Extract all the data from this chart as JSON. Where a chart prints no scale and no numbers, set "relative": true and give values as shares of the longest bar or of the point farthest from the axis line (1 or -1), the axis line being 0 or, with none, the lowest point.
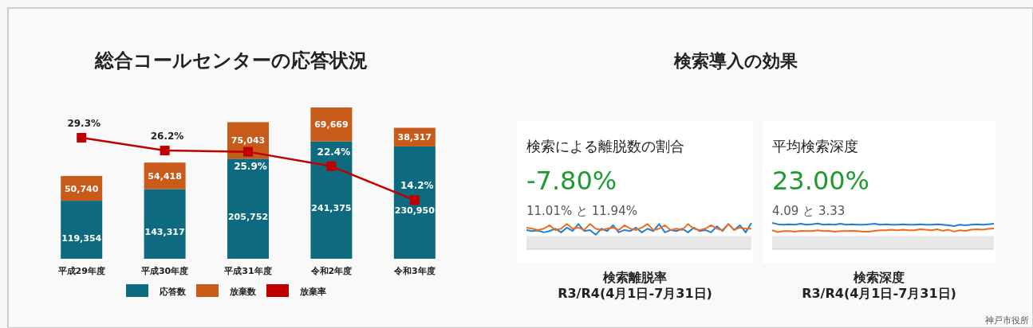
{
  "chart_data": [
    {
      "type": "bar",
      "title": "総合コールセンターの応答状況",
      "stacked": true,
      "legend": "bottom",
      "categories": [
        "平成29年度",
        "平成30年度",
        "平成31年度",
        "令和2年度",
        "令和3年度"
      ],
      "series": [
        {
          "name": "応答数",
          "color": "#0e6a7e",
          "values": [
            119354,
            143317,
            205752,
            241375,
            230950
          ],
          "value_labels": [
            "119,354",
            "143,317",
            "205,752",
            "241,375",
            "230,950"
          ]
        },
        {
          "name": "放棄数",
          "color": "#c85a1a",
          "values": [
            50740,
            54418,
            75043,
            69669,
            38317
          ],
          "value_labels": [
            "50,740",
            "54,418",
            "75,043",
            "69,669",
            "38,317"
          ]
        },
        {
          "name": "放棄率",
          "type": "line",
          "axis": "y2",
          "marker": "square",
          "color": "#c00000",
          "values": [
            29.3,
            26.2,
            25.9,
            22.4,
            14.2
          ],
          "value_labels": [
            "29.3%",
            "26.2%",
            "25.9%",
            "22.4%",
            "14.2%"
          ]
        }
      ]
    },
    {
      "type": "other",
      "title": "検索導入の効果",
      "annotations": [
        "神戸市役所"
      ]
    },
    {
      "type": "line",
      "relative": true,
      "title": "検索による離脱数の割合",
      "subtitle": "-7.80%",
      "annotations": [
        "11.01% と 11.94%"
      ],
      "xlabel": "検索離脱率\nR3/R4(4月1日-7月31日)",
      "bands": [
        {
          "axis": "y",
          "from": 0,
          "to": 0.5,
          "color": "#e8e8e8"
        }
      ],
      "categories": [
        null,
        null,
        null,
        null,
        null,
        null,
        null,
        null,
        null,
        null,
        null,
        null,
        null,
        null,
        null,
        null,
        null,
        null,
        null,
        null,
        null,
        null,
        null,
        null,
        null,
        null,
        null,
        null,
        null,
        null,
        null,
        null,
        null,
        null,
        null,
        null,
        null,
        null,
        null,
        null
      ],
      "series": [
        {
          "color": "#1f7fd6",
          "values": [
            0.73,
            0.69,
            0.71,
            0.64,
            0.69,
            0.78,
            0.64,
            0.82,
            0.69,
            0.96,
            0.69,
            0.73,
            0.55,
            0.78,
            0.69,
            0.91,
            0.64,
            0.73,
            0.69,
            0.82,
            0.64,
            0.78,
            0.69,
            0.96,
            0.64,
            0.73,
            0.69,
            0.78,
            0.64,
            0.82,
            0.69,
            0.73,
            0.64,
            0.87,
            0.69,
            0.96,
            0.73,
            0.91,
            0.64,
            1.0
          ]
        },
        {
          "color": "#f26b1d",
          "values": [
            0.82,
            0.78,
            0.73,
            0.78,
            0.91,
            0.73,
            0.78,
            0.96,
            0.78,
            0.82,
            0.73,
            0.96,
            0.78,
            0.73,
            0.78,
            0.82,
            0.73,
            0.91,
            0.78,
            0.73,
            0.82,
            0.96,
            0.73,
            0.78,
            0.91,
            0.73,
            0.78,
            0.73,
            0.96,
            0.78,
            0.73,
            0.78,
            0.91,
            0.78,
            0.73,
            0.96,
            0.73,
            0.82,
            0.78,
            0.78
          ]
        }
      ]
    },
    {
      "type": "line",
      "relative": true,
      "title": "平均検索深度",
      "subtitle": "23.00%",
      "annotations": [
        "4.09 と 3.33"
      ],
      "xlabel": "検索深度\nR3/R4(4月1日-7月31日)",
      "bands": [
        {
          "axis": "y",
          "from": 0,
          "to": 0.5,
          "color": "#e8e8e8"
        }
      ],
      "categories": [
        null,
        null,
        null,
        null,
        null,
        null,
        null,
        null,
        null,
        null,
        null,
        null,
        null,
        null,
        null,
        null,
        null,
        null,
        null,
        null,
        null,
        null,
        null,
        null,
        null,
        null,
        null,
        null,
        null,
        null,
        null,
        null,
        null,
        null,
        null,
        null,
        null,
        null,
        null,
        null
      ],
      "series": [
        {
          "color": "#1f7fd6",
          "values": [
            1.0,
            0.95,
            0.93,
            0.95,
            0.93,
            0.97,
            0.93,
            0.95,
            0.98,
            0.93,
            0.95,
            0.93,
            0.97,
            0.93,
            0.95,
            0.93,
            0.93,
            0.95,
            0.97,
            0.93,
            0.95,
            0.93,
            0.93,
            0.95,
            0.93,
            0.93,
            0.95,
            0.93,
            0.93,
            0.95,
            0.93,
            0.91,
            0.88,
            0.93,
            0.91,
            0.93,
            0.95,
            0.93,
            0.95,
            0.97
          ]
        },
        {
          "color": "#f26b1d",
          "values": [
            0.72,
            0.65,
            0.69,
            0.69,
            0.67,
            0.7,
            0.69,
            0.69,
            0.72,
            0.69,
            0.7,
            0.67,
            0.69,
            0.69,
            0.7,
            0.69,
            0.67,
            0.67,
            0.7,
            0.72,
            0.72,
            0.74,
            0.72,
            0.74,
            0.72,
            0.72,
            0.76,
            0.74,
            0.72,
            0.76,
            0.7,
            0.74,
            0.67,
            0.72,
            0.7,
            0.74,
            0.76,
            0.74,
            0.77,
            0.79
          ]
        }
      ]
    }
  ]
}
